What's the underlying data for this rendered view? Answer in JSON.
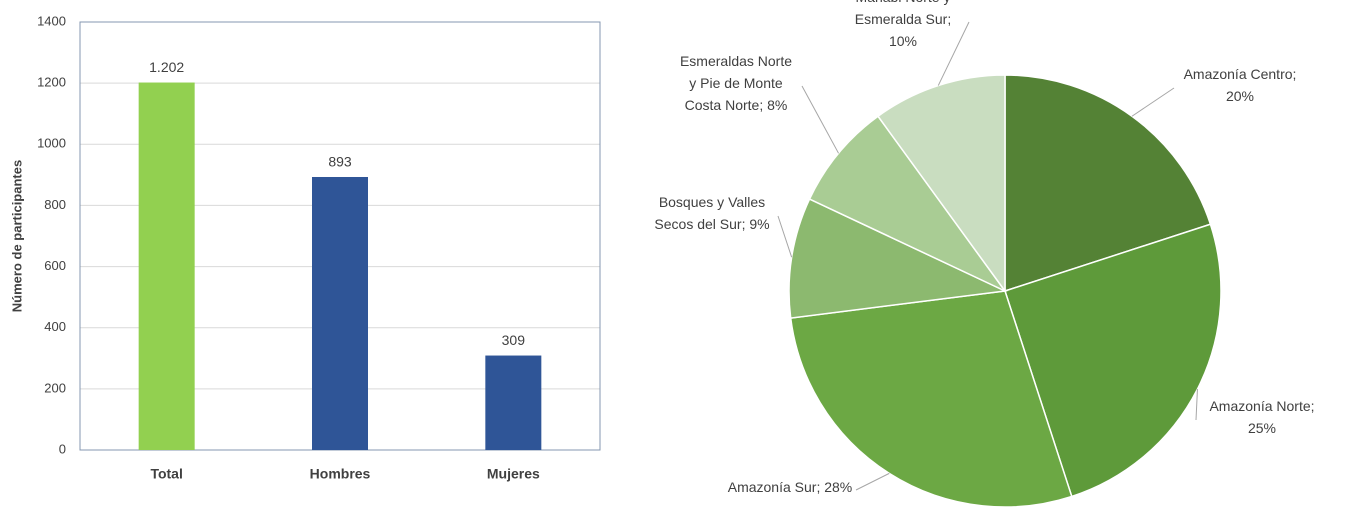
{
  "chart_data": [
    {
      "type": "bar",
      "y_label": "Número de participantes",
      "categories": [
        "Total",
        "Hombres",
        "Mujeres"
      ],
      "values": [
        1202,
        893,
        309
      ],
      "value_labels": [
        "1.202",
        "893",
        "309"
      ],
      "colors": [
        "#92d050",
        "#2f5597",
        "#2f5597"
      ],
      "ylim": [
        0,
        1400
      ],
      "yticks": [
        0,
        200,
        400,
        600,
        800,
        1000,
        1200,
        1400
      ],
      "grid": true
    },
    {
      "type": "pie",
      "categories": [
        "Amazonía Centro;",
        "Amazonía Norte;",
        "Amazonía Sur;",
        "Bosques y Valles Secos del Sur;",
        "Esmeraldas Norte y Pie de Monte Costa Norte;",
        "Manabi Norte y Esmeralda Sur;"
      ],
      "values": [
        20,
        25,
        28,
        9,
        8,
        10
      ],
      "value_labels": [
        "20%",
        "25%",
        "28%",
        "9%",
        "8%",
        "10%"
      ],
      "colors": [
        "#548235",
        "#5e9a3a",
        "#6ca844",
        "#8cb96f",
        "#a9cc94",
        "#c9ddc0"
      ]
    }
  ]
}
